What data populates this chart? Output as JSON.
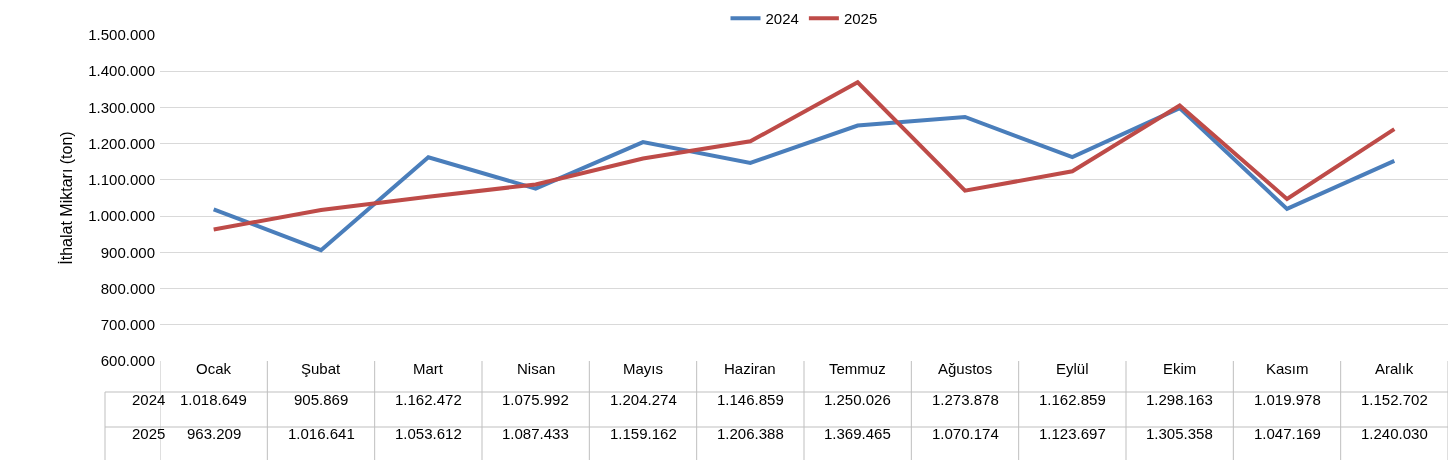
{
  "chart_data": {
    "type": "line",
    "ylabel": "İthalat Miktarı (ton)",
    "categories": [
      "Ocak",
      "Şubat",
      "Mart",
      "Nisan",
      "Mayıs",
      "Haziran",
      "Temmuz",
      "Ağustos",
      "Eylül",
      "Ekim",
      "Kasım",
      "Aralık"
    ],
    "series": [
      {
        "name": "2024",
        "color": "#4a7ebb",
        "values": [
          1018649,
          905869,
          1162472,
          1075992,
          1204274,
          1146859,
          1250026,
          1273878,
          1162859,
          1298163,
          1019978,
          1152702
        ],
        "value_labels": [
          "1.018.649",
          "905.869",
          "1.162.472",
          "1.075.992",
          "1.204.274",
          "1.146.859",
          "1.250.026",
          "1.273.878",
          "1.162.859",
          "1.298.163",
          "1.019.978",
          "1.152.702"
        ]
      },
      {
        "name": "2025",
        "color": "#be4b48",
        "values": [
          963209,
          1016641,
          1053612,
          1087433,
          1159162,
          1206388,
          1369465,
          1070174,
          1123697,
          1305358,
          1047169,
          1240030
        ],
        "value_labels": [
          "963.209",
          "1.016.641",
          "1.053.612",
          "1.087.433",
          "1.159.162",
          "1.206.388",
          "1.369.465",
          "1.070.174",
          "1.123.697",
          "1.305.358",
          "1.047.169",
          "1.240.030"
        ]
      }
    ],
    "ylim": [
      600000,
      1500000
    ],
    "yticks": [
      {
        "value": 600000,
        "label": "600.000"
      },
      {
        "value": 700000,
        "label": "700.000"
      },
      {
        "value": 800000,
        "label": "800.000"
      },
      {
        "value": 900000,
        "label": "900.000"
      },
      {
        "value": 1000000,
        "label": "1.000.000"
      },
      {
        "value": 1100000,
        "label": "1.100.000"
      },
      {
        "value": 1200000,
        "label": "1.200.000"
      },
      {
        "value": 1300000,
        "label": "1.300.000"
      },
      {
        "value": 1400000,
        "label": "1.400.000"
      },
      {
        "value": 1500000,
        "label": "1.500.000"
      }
    ],
    "grid": "y",
    "legend": "top",
    "marker": "none",
    "line_style": "solid"
  }
}
